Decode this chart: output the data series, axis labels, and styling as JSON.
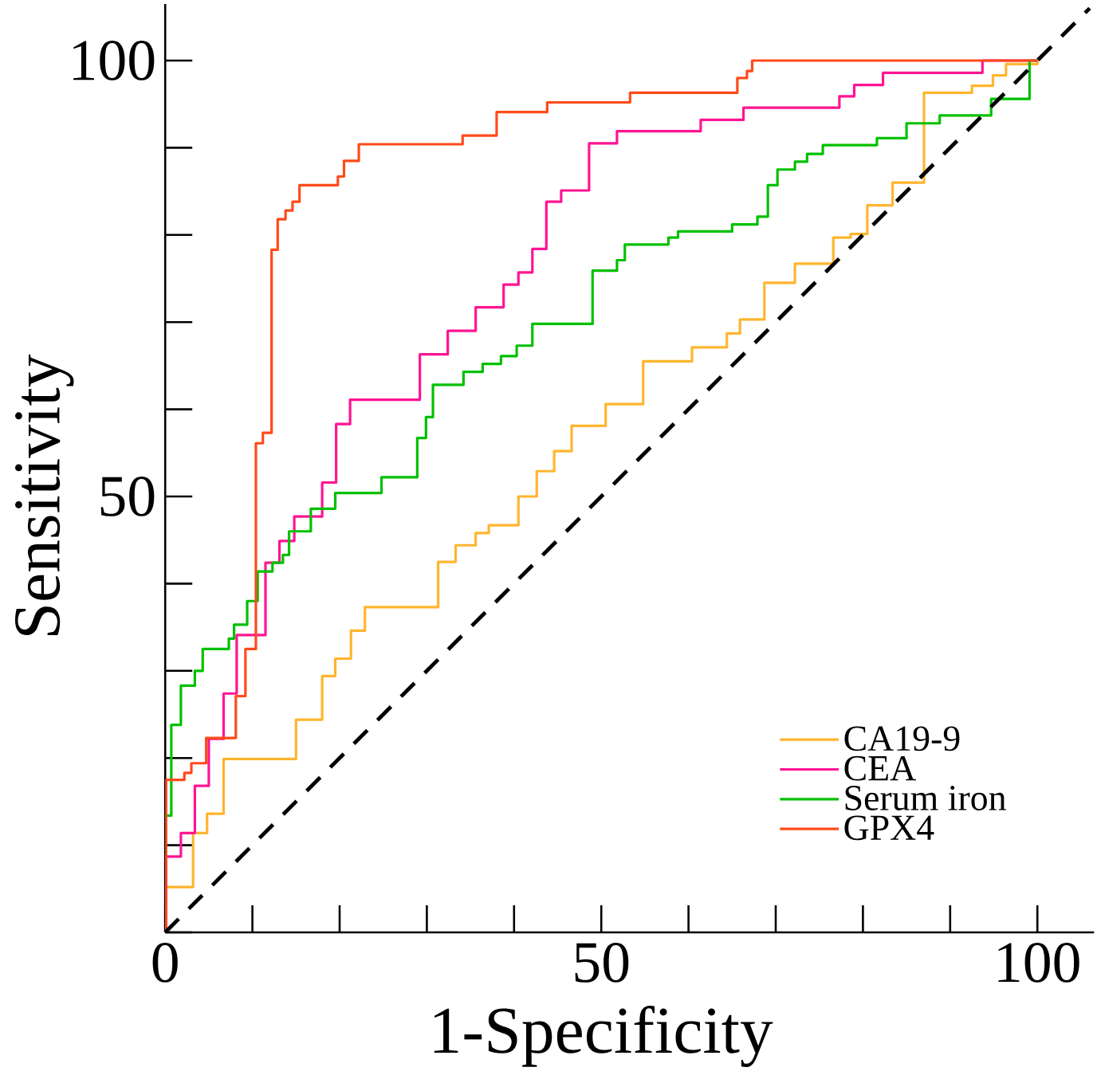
{
  "chart_data": {
    "type": "step",
    "xlabel": "1-Specificity",
    "ylabel": "Sensitivity",
    "xlim": [
      0,
      106.5
    ],
    "ylim": [
      0,
      106.5
    ],
    "xticks": [
      0,
      50,
      100
    ],
    "yticks": [
      {
        "value": 0,
        "label": null
      },
      50,
      100
    ],
    "legend": "bottom right",
    "series": [
      {
        "name": "CA19-9",
        "color": "#ffb52e",
        "x": [
          0,
          0.1,
          3.2,
          4.8,
          6.7,
          15.0,
          18.0,
          19.5,
          21.3,
          22.9,
          31.3,
          33.3,
          35.6,
          37.1,
          40.5,
          42.6,
          44.6,
          46.6,
          50.5,
          54.8,
          60.4,
          64.4,
          65.9,
          68.7,
          72.2,
          76.6,
          78.6,
          80.5,
          83.4,
          87.0,
          92.5,
          94.9,
          96.4,
          100
        ],
        "values": [
          0,
          5.2,
          11.4,
          13.6,
          19.9,
          24.4,
          29.4,
          31.4,
          34.6,
          37.3,
          42.5,
          44.4,
          45.8,
          46.7,
          50.0,
          52.9,
          55.2,
          58.1,
          60.6,
          65.5,
          67.1,
          68.7,
          70.3,
          74.5,
          76.7,
          79.7,
          80.1,
          83.4,
          86.0,
          96.3,
          97.1,
          98.3,
          99.6,
          100
        ]
      },
      {
        "name": "CEA",
        "color": "#ff1493",
        "x": [
          0,
          0.1,
          1.8,
          3.4,
          5.0,
          6.7,
          8.2,
          11.5,
          13.1,
          14.8,
          18.0,
          19.6,
          21.2,
          29.2,
          32.4,
          35.6,
          38.8,
          40.5,
          42.1,
          43.7,
          45.4,
          48.6,
          51.8,
          61.4,
          66.3,
          77.3,
          79.0,
          82.3,
          93.7,
          100
        ],
        "values": [
          0,
          8.7,
          11.4,
          16.8,
          22.2,
          27.4,
          34.1,
          42.4,
          44.9,
          47.7,
          51.6,
          58.3,
          61.1,
          66.3,
          69.0,
          71.7,
          74.3,
          75.7,
          78.4,
          83.8,
          85.1,
          90.5,
          91.9,
          93.2,
          94.6,
          95.9,
          97.2,
          98.6,
          100,
          100
        ]
      },
      {
        "name": "Serum iron",
        "color": "#00c000",
        "x": [
          0,
          0.7,
          1.8,
          3.4,
          4.3,
          7.3,
          7.9,
          9.4,
          10.6,
          12.3,
          13.5,
          14.2,
          16.7,
          19.5,
          24.8,
          28.9,
          29.9,
          30.7,
          34.2,
          36.4,
          38.5,
          40.3,
          42.1,
          49.0,
          51.8,
          52.7,
          57.7,
          58.8,
          65.0,
          67.9,
          69.1,
          70.2,
          72.2,
          73.6,
          75.4,
          81.6,
          85.0,
          88.8,
          94.7,
          99.1,
          100
        ],
        "values": [
          13.4,
          23.8,
          28.3,
          30.0,
          32.5,
          33.7,
          35.3,
          38.0,
          41.4,
          42.4,
          43.3,
          46.0,
          48.6,
          50.4,
          52.2,
          56.7,
          59.1,
          62.8,
          64.3,
          65.2,
          66.1,
          67.3,
          69.8,
          75.9,
          77.1,
          78.9,
          79.7,
          80.4,
          81.2,
          82.1,
          85.7,
          87.5,
          88.4,
          89.3,
          90.3,
          91.1,
          92.8,
          93.7,
          95.6,
          100,
          100
        ]
      },
      {
        "name": "GPX4",
        "color": "#ff4a1a",
        "x": [
          0,
          0.1,
          2.2,
          3.0,
          4.7,
          8.1,
          9.2,
          10.4,
          11.2,
          12.2,
          12.9,
          13.8,
          14.6,
          15.4,
          19.8,
          20.5,
          22.2,
          34.1,
          38.0,
          43.8,
          53.3,
          65.6,
          66.7,
          67.3,
          100
        ],
        "values": [
          0,
          17.5,
          18.3,
          19.4,
          22.3,
          27.1,
          32.5,
          56.1,
          57.3,
          78.3,
          81.8,
          82.8,
          83.8,
          85.7,
          86.7,
          88.5,
          90.4,
          91.4,
          94.1,
          95.2,
          96.3,
          98.0,
          98.8,
          100,
          100
        ]
      },
      {
        "type": "line",
        "line_style": "dashed",
        "color": "#000000",
        "x": [
          0,
          106
        ],
        "values": [
          0,
          106
        ]
      }
    ]
  }
}
